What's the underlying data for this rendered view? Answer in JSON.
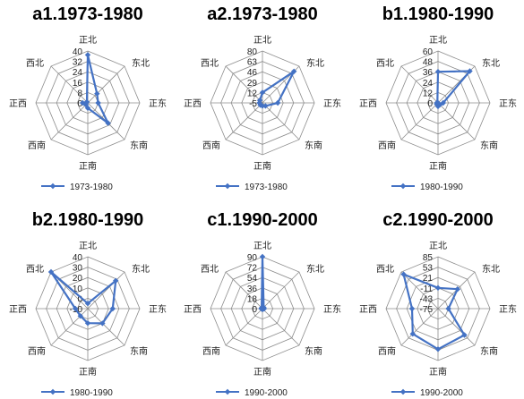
{
  "style": {
    "series_color": "#4472C4",
    "grid_color": "#8C8C8C",
    "background": "#FFFFFF"
  },
  "chart_data": [
    {
      "type": "radar",
      "title": "a1.1973-1980",
      "axes": [
        "正北",
        "东北",
        "正东",
        "东南",
        "正南",
        "西南",
        "正西",
        "西北"
      ],
      "rticks": [
        "40",
        "32",
        "24",
        "16",
        "8",
        "0"
      ],
      "rlim": [
        0,
        40
      ],
      "series": [
        {
          "name": "1973-1980",
          "values": [
            37,
            10,
            8,
            22,
            4,
            2,
            4,
            1
          ]
        }
      ],
      "legend": "bottom"
    },
    {
      "type": "radar",
      "title": "a2.1973-1980",
      "axes": [
        "正北",
        "东北",
        "正东",
        "东南",
        "正南",
        "西南",
        "正西",
        "西北"
      ],
      "rticks": [
        "80",
        "63",
        "46",
        "29",
        "12",
        "-5"
      ],
      "rlim": [
        -5,
        80
      ],
      "series": [
        {
          "name": "1973-1980",
          "values": [
            12,
            68,
            20,
            2,
            0,
            0,
            0,
            1
          ]
        }
      ],
      "legend": "bottom"
    },
    {
      "type": "radar",
      "title": "b1.1980-1990",
      "axes": [
        "正北",
        "东北",
        "正东",
        "东南",
        "正南",
        "西南",
        "正西",
        "西北"
      ],
      "rticks": [
        "60",
        "48",
        "36",
        "24",
        "12",
        "0"
      ],
      "rlim": [
        0,
        60
      ],
      "series": [
        {
          "name": "1980-1990",
          "values": [
            36,
            52,
            6,
            3,
            4,
            2,
            1,
            1
          ]
        }
      ],
      "legend": "bottom"
    },
    {
      "type": "radar",
      "title": "b2.1980-1990",
      "axes": [
        "正北",
        "东北",
        "正东",
        "东南",
        "正南",
        "西南",
        "正西",
        "西北"
      ],
      "rticks": [
        "40",
        "30",
        "20",
        "10",
        "0",
        "-10"
      ],
      "rlim": [
        -10,
        40
      ],
      "series": [
        {
          "name": "1980-1990",
          "values": [
            -5,
            28,
            14,
            10,
            4,
            0,
            2,
            40
          ]
        }
      ],
      "legend": "bottom"
    },
    {
      "type": "radar",
      "title": "c1.1990-2000",
      "axes": [
        "正北",
        "东北",
        "正东",
        "东南",
        "正南",
        "西南",
        "正西",
        "西北"
      ],
      "rticks": [
        "90",
        "72",
        "54",
        "36",
        "18",
        "0"
      ],
      "rlim": [
        0,
        90
      ],
      "series": [
        {
          "name": "1990-2000",
          "values": [
            90,
            3,
            3,
            1,
            1,
            1,
            2,
            2
          ]
        }
      ],
      "legend": "bottom"
    },
    {
      "type": "radar",
      "title": "c2.1990-2000",
      "axes": [
        "正北",
        "东北",
        "正东",
        "东南",
        "正南",
        "西南",
        "正西",
        "西北"
      ],
      "rticks": [
        "85",
        "53",
        "21",
        "-11",
        "-43",
        "-75"
      ],
      "rlim": [
        -75,
        85
      ],
      "series": [
        {
          "name": "1990-2000",
          "values": [
            -11,
            10,
            -43,
            40,
            50,
            35,
            5,
            75
          ]
        }
      ],
      "legend": "bottom"
    }
  ]
}
